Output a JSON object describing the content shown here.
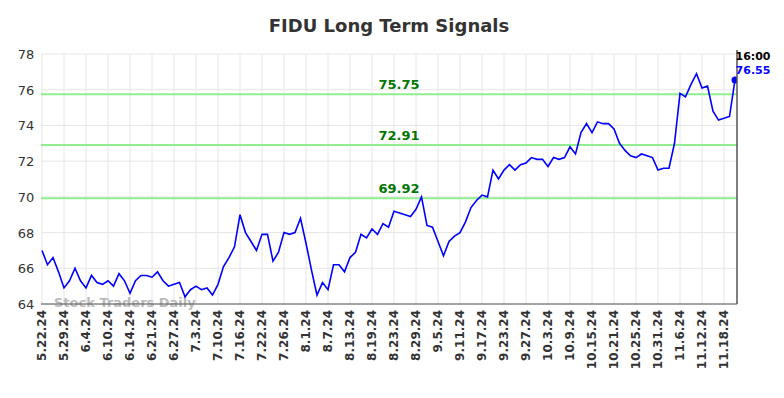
{
  "chart_data": {
    "type": "line",
    "title": "FIDU Long Term Signals",
    "categories": [
      "5.22.24",
      null,
      null,
      null,
      "5.29.24",
      null,
      null,
      null,
      "6.4.24",
      null,
      null,
      null,
      "6.10.24",
      null,
      null,
      null,
      "6.14.24",
      null,
      null,
      null,
      "6.21.24",
      null,
      null,
      null,
      "6.27.24",
      null,
      null,
      null,
      "7.3.24",
      null,
      null,
      null,
      "7.10.24",
      null,
      null,
      null,
      "7.16.24",
      null,
      null,
      null,
      "7.22.24",
      null,
      null,
      null,
      "7.26.24",
      null,
      null,
      null,
      "8.1.24",
      null,
      null,
      null,
      "8.7.24",
      null,
      null,
      null,
      "8.13.24",
      null,
      null,
      null,
      "8.19.24",
      null,
      null,
      null,
      "8.23.24",
      null,
      null,
      null,
      "8.29.24",
      null,
      null,
      null,
      "9.5.24",
      null,
      null,
      null,
      "9.11.24",
      null,
      null,
      null,
      "9.17.24",
      null,
      null,
      null,
      "9.23.24",
      null,
      null,
      null,
      "9.27.24",
      null,
      null,
      null,
      "10.3.24",
      null,
      null,
      null,
      "10.9.24",
      null,
      null,
      null,
      "10.15.24",
      null,
      null,
      null,
      "10.21.24",
      null,
      null,
      null,
      "10.25.24",
      null,
      null,
      null,
      "10.31.24",
      null,
      null,
      null,
      "11.6.24",
      null,
      null,
      null,
      "11.12.24",
      null,
      null,
      null,
      "11.18.24",
      null,
      null
    ],
    "series": [
      {
        "name": "FIDU",
        "color": "#0000ff",
        "values": [
          67.0,
          66.2,
          66.6,
          65.8,
          64.9,
          65.3,
          66.0,
          65.3,
          64.9,
          65.6,
          65.2,
          65.1,
          65.3,
          65.0,
          65.7,
          65.3,
          64.6,
          65.3,
          65.6,
          65.6,
          65.5,
          65.8,
          65.3,
          65.0,
          65.1,
          65.2,
          64.4,
          64.8,
          65.0,
          64.8,
          64.9,
          64.5,
          65.1,
          66.1,
          66.6,
          67.2,
          69.0,
          68.0,
          67.5,
          67.0,
          67.9,
          67.9,
          66.4,
          66.9,
          68.0,
          67.9,
          68.0,
          68.8,
          67.4,
          65.9,
          64.5,
          65.2,
          64.8,
          66.2,
          66.2,
          65.8,
          66.6,
          66.9,
          67.9,
          67.7,
          68.2,
          67.9,
          68.5,
          68.3,
          69.2,
          69.1,
          69.0,
          68.9,
          69.3,
          70.0,
          68.4,
          68.3,
          67.5,
          66.7,
          67.5,
          67.8,
          68.0,
          68.6,
          69.4,
          69.8,
          70.1,
          70.0,
          71.5,
          71.0,
          71.5,
          71.8,
          71.5,
          71.8,
          71.9,
          72.2,
          72.1,
          72.1,
          71.7,
          72.2,
          72.1,
          72.2,
          72.8,
          72.4,
          73.6,
          74.1,
          73.6,
          74.2,
          74.1,
          74.1,
          73.8,
          73.0,
          72.6,
          72.3,
          72.2,
          72.4,
          72.3,
          72.2,
          71.5,
          71.6,
          71.6,
          73.0,
          75.8,
          75.6,
          76.3,
          76.9,
          76.1,
          76.2,
          74.8,
          74.3,
          74.4,
          74.5,
          76.55
        ]
      }
    ],
    "ylim": [
      64,
      78
    ],
    "yticks": [
      64,
      66,
      68,
      70,
      72,
      74,
      76,
      78
    ],
    "grid": true,
    "signal_levels": [
      75.75,
      72.91,
      69.92
    ],
    "last_time": "16:00",
    "watermark": "Stock Traders Daily"
  }
}
